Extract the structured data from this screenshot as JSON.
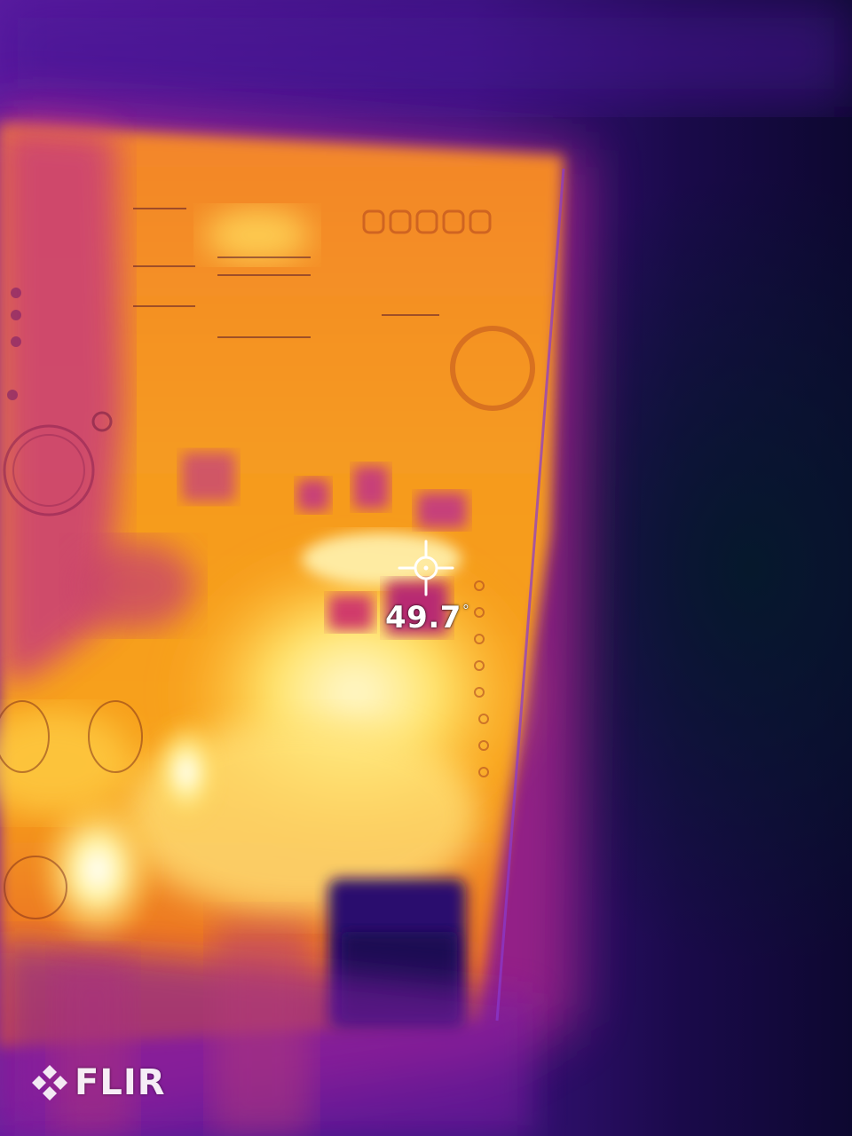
{
  "measurement": {
    "value": "49.7",
    "unit_symbol": "°"
  },
  "brand": {
    "logo_text": "FLIR"
  },
  "icons": {
    "crosshair": "crosshair-icon",
    "logo_mark": "flir-logo-icon"
  },
  "palette": {
    "cold": "#120a3a",
    "cool": "#6a10a8",
    "warm_mid": "#e0472a",
    "warm": "#f59a1c",
    "hot": "#ffe16a",
    "hottest": "#fffbe0"
  }
}
